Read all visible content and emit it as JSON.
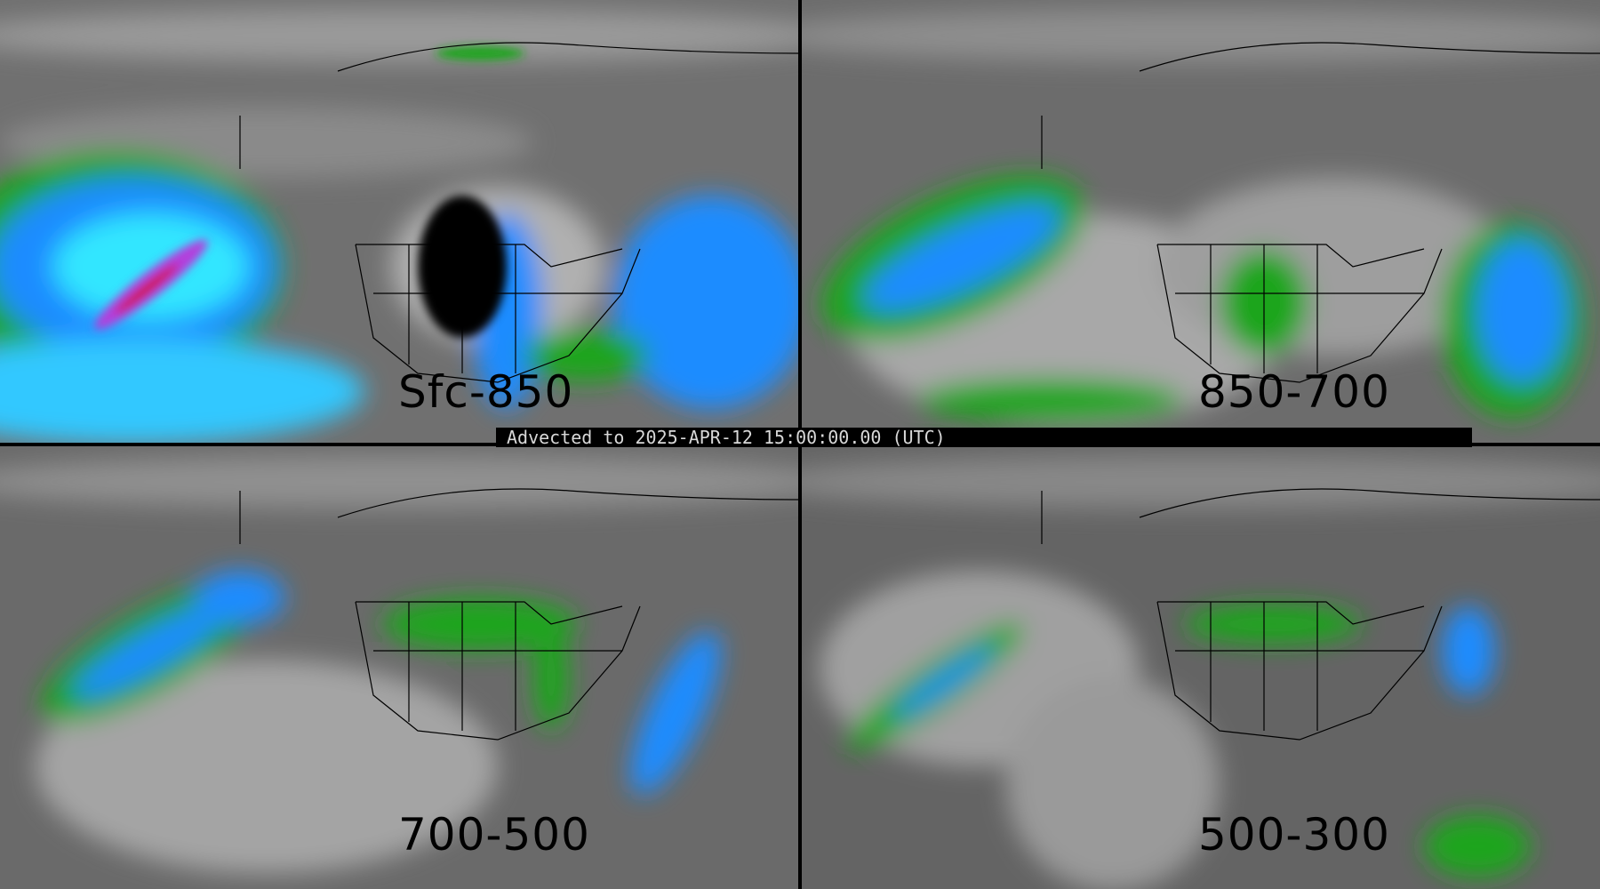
{
  "banner": "Advected to 2025-APR-12 15:00:00.00 (UTC)",
  "panels": [
    {
      "label": "Sfc-850"
    },
    {
      "label": "850-700"
    },
    {
      "label": "700-500"
    },
    {
      "label": "500-300"
    }
  ],
  "colors": {
    "background_gray": "#6a6a6a",
    "green": "#1aa51a",
    "blue": "#1a8cff",
    "cyan": "#33e6ff",
    "magenta": "#b43cdc",
    "red": "#d01818",
    "outline": "#000000"
  }
}
